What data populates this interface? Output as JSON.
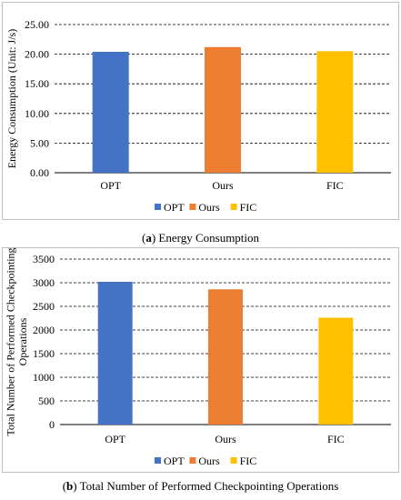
{
  "captions": {
    "a_tag": "a",
    "a_text": "Energy Consumption",
    "b_tag": "b",
    "b_text": "Total Number of Performed Checkpointing Operations"
  },
  "chart_data": [
    {
      "type": "bar",
      "categories": [
        "OPT",
        "Ours",
        "FIC"
      ],
      "values": [
        20.4,
        21.2,
        20.5
      ],
      "ylabel": "Energy Consumption (Unit: J/s)",
      "ylim": [
        0,
        25
      ],
      "yticks": [
        "0.00",
        "5.00",
        "10.00",
        "15.00",
        "20.00",
        "25.00"
      ],
      "legend": [
        "OPT",
        "Ours",
        "FIC"
      ],
      "legend_position": "bottom",
      "grid": "dashed horizontal",
      "colors": [
        "#4472c4",
        "#ed7d31",
        "#ffc000"
      ]
    },
    {
      "type": "bar",
      "categories": [
        "OPT",
        "Ours",
        "FIC"
      ],
      "values": [
        3020,
        2860,
        2260
      ],
      "ylabel": "Total Number of Performed Checkpointing Operations",
      "ylim": [
        0,
        3500
      ],
      "yticks": [
        "0",
        "500",
        "1000",
        "1500",
        "2000",
        "2500",
        "3000",
        "3500"
      ],
      "legend": [
        "OPT",
        "Ours",
        "FIC"
      ],
      "legend_position": "bottom",
      "grid": "dashed horizontal",
      "colors": [
        "#4472c4",
        "#ed7d31",
        "#ffc000"
      ]
    }
  ]
}
